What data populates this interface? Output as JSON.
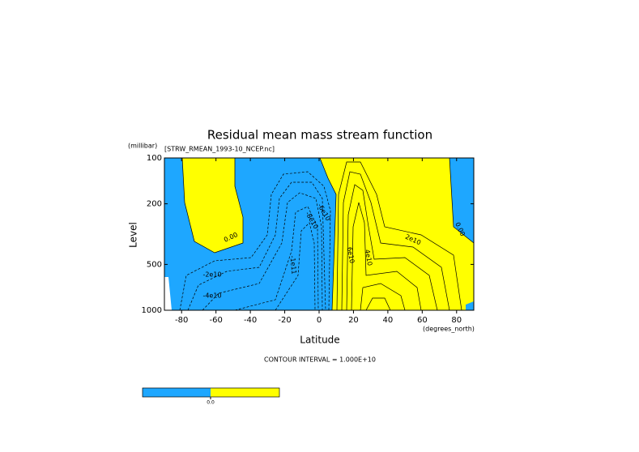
{
  "chart_data": {
    "type": "contour",
    "title": "Residual mean mass stream function",
    "subtitle": "[STRW_RMEAN_1993-10_NCEP.nc]",
    "x_label": "Latitude",
    "x_units": "(degrees_north)",
    "y_label": "Level",
    "y_units": "(millibar)",
    "xlim": [
      -90,
      90
    ],
    "xticks": [
      -80,
      -60,
      -40,
      -20,
      0,
      20,
      40,
      60,
      80
    ],
    "ylim": [
      1000,
      100
    ],
    "yticks": [
      100,
      200,
      500,
      1000
    ],
    "y_log": true,
    "negative_color": "#1ea7ff",
    "positive_color": "#ffff00",
    "contour_labels": [
      "0.00",
      "-2e10",
      "-4e10",
      "-8e10",
      "-1e11",
      "-6e10",
      "2e10",
      "4e10",
      "6e10",
      "0.00"
    ],
    "footnote": "CONTOUR INTERVAL = 1.000E+10",
    "colorbar": [
      {
        "value": 0,
        "label": "0.0"
      }
    ]
  }
}
